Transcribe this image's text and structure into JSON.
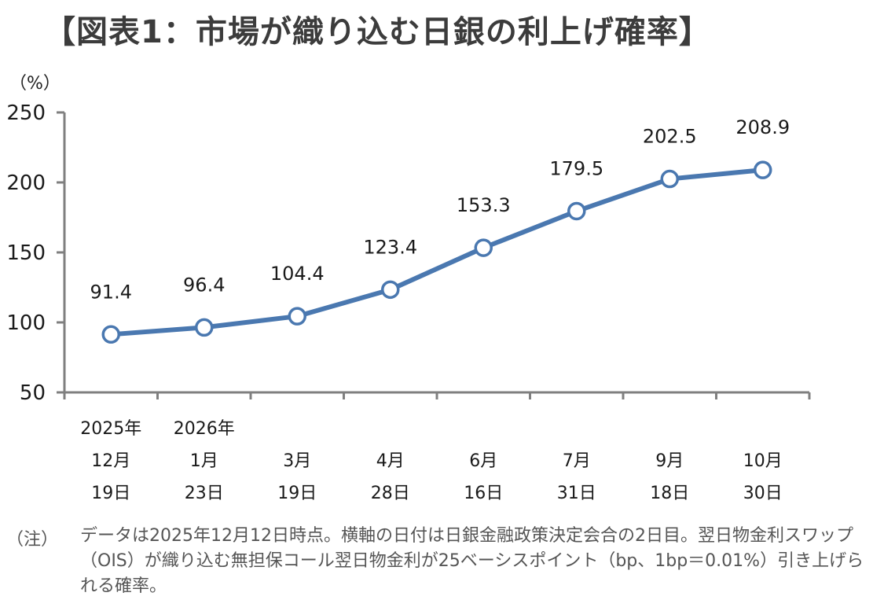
{
  "title": "【図表1：市場が織り込む日銀の利上げ確率】",
  "unit_label": "（%）",
  "chart_data": {
    "type": "line",
    "title": "【図表1：市場が織り込む日銀の利上げ確率】",
    "ylabel": "（%）",
    "ylim": [
      50,
      250
    ],
    "yticks": [
      50,
      100,
      150,
      200,
      250
    ],
    "categories": [
      [
        "2025年",
        "12月",
        "19日"
      ],
      [
        "2026年",
        "1月",
        "23日"
      ],
      [
        "",
        "3月",
        "19日"
      ],
      [
        "",
        "4月",
        "28日"
      ],
      [
        "",
        "6月",
        "16日"
      ],
      [
        "",
        "7月",
        "31日"
      ],
      [
        "",
        "9月",
        "18日"
      ],
      [
        "",
        "10月",
        "30日"
      ]
    ],
    "values": [
      91.4,
      96.4,
      104.4,
      123.4,
      153.3,
      179.5,
      202.5,
      208.9
    ],
    "value_labels": [
      "91.4",
      "96.4",
      "104.4",
      "123.4",
      "153.3",
      "179.5",
      "202.5",
      "208.9"
    ],
    "line_color": "#4a78b0",
    "axis_color": "#7f7f7f"
  },
  "note": {
    "label": "（注）",
    "text": "データは2025年12月12日時点。横軸の日付は日銀金融政策決定会合の2日目。翌日物金利スワップ（OIS）が織り込む無担保コール翌日物金利が25ベーシスポイント（bp、1bp＝0.01%）引き上げられる確率。"
  }
}
